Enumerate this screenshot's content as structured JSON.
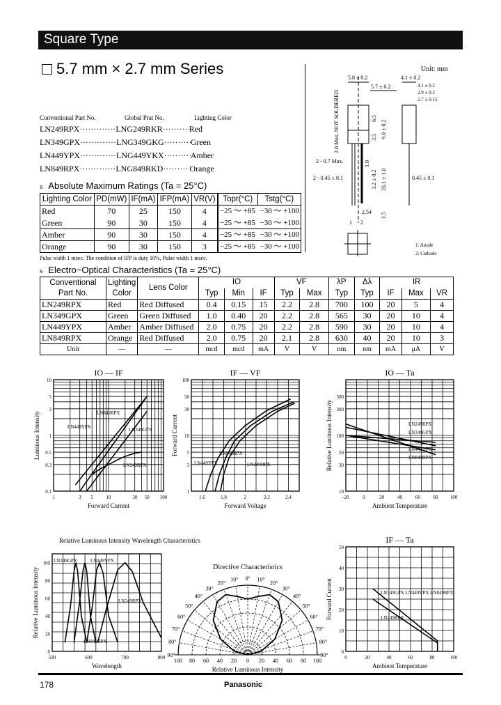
{
  "header": {
    "section": "Square Type",
    "series_title": "5.7 mm × 2.7 mm Series"
  },
  "part_list": {
    "headers": [
      "Conventional Part No.",
      "Global Prat No.",
      "Lighting Color"
    ],
    "rows": [
      [
        "LN249RPX",
        "LNG249RKR",
        "Red"
      ],
      [
        "LN349GPX",
        "LNG349GKG",
        "Green"
      ],
      [
        "LN449YPX",
        "LNG449YKX",
        "Amber"
      ],
      [
        "LN849RPX",
        "LNG849RKD",
        "Orange"
      ]
    ]
  },
  "abs_max": {
    "heading": "Absolute Maximum Ratings (Ta = 25°C)",
    "headers": [
      "Lighting Color",
      "PD(mW)",
      "IF(mA)",
      "IFP(mA)",
      "VR(V)",
      "Topr(°C)",
      "Tstg(°C)"
    ],
    "rows": [
      [
        "Red",
        "70",
        "25",
        "150",
        "4",
        "−25 ～ +85",
        "−30 ～ +100"
      ],
      [
        "Green",
        "90",
        "30",
        "150",
        "4",
        "−25 ～ +85",
        "−30 ～ +100"
      ],
      [
        "Amber",
        "90",
        "30",
        "150",
        "4",
        "−25 ～ +85",
        "−30 ～ +100"
      ],
      [
        "Orange",
        "90",
        "30",
        "150",
        "3",
        "−25 ～ +85",
        "−30 ～ +100"
      ]
    ],
    "footnote": "Pulse width 1 msec. The condition of IFP is duty 10%, Pulse width 1 msec."
  },
  "electro_optical": {
    "heading": "Electro−Optical Characteristics (Ta = 25°C)",
    "group_headers": [
      "Conventional Part No.",
      "Lighting Color",
      "Lens Color",
      "IO",
      "VF",
      "λP",
      "Δλ",
      "IR"
    ],
    "sub_headers": [
      "Typ",
      "Min",
      "IF",
      "Typ",
      "Max",
      "Typ",
      "Typ",
      "IF",
      "Max",
      "VR"
    ],
    "rows": [
      [
        "LN249RPX",
        "Red",
        "Red Diffused",
        "0.4",
        "0.15",
        "15",
        "2.2",
        "2.8",
        "700",
        "100",
        "20",
        "5",
        "4"
      ],
      [
        "LN349GPX",
        "Green",
        "Green Diffused",
        "1.0",
        "0.40",
        "20",
        "2.2",
        "2.8",
        "565",
        "30",
        "20",
        "10",
        "4"
      ],
      [
        "LN449YPX",
        "Amber",
        "Amber Diffused",
        "2.0",
        "0.75",
        "20",
        "2.2",
        "2.8",
        "590",
        "30",
        "20",
        "10",
        "4"
      ],
      [
        "LN849RPX",
        "Orange",
        "Red Diffused",
        "2.0",
        "0.75",
        "20",
        "2.1",
        "2.8",
        "630",
        "40",
        "20",
        "10",
        "3"
      ]
    ],
    "units": [
      "Unit",
      "—",
      "—",
      "mcd",
      "mcd",
      "mA",
      "V",
      "V",
      "nm",
      "nm",
      "mA",
      "μA",
      "V"
    ]
  },
  "dimensions": {
    "unit": "Unit: mm",
    "labels": [
      "5.8 ± 0.2",
      "5.7 ± 0.2",
      "4.1 ± 0.2",
      "4.1 ± 0.2",
      "2.9 ± 0.2",
      "2.7 ± 0.15",
      "2.0 Max. NOT SOLDERED",
      "6.5",
      "3.5",
      "9.0 ± 0.2",
      "1.0",
      "2 - 0.7 Max.",
      "2 - 0.45 ± 0.1",
      "0.45 ± 0.1",
      "3.2 ± 0.2",
      "26.1 ± 1.0",
      "1.5",
      "2.54",
      "1",
      "2"
    ],
    "pins": [
      "1: Anode",
      "2: Cathode"
    ]
  },
  "chart_data": [
    {
      "id": "io-if",
      "type": "line",
      "title": "IO — IF",
      "xlabel": "Forward Current",
      "ylabel": "Luminous Intensity",
      "xscale": "log",
      "yscale": "log",
      "xlim": [
        1,
        100
      ],
      "ylim": [
        0.1,
        10
      ],
      "xticks": [
        1,
        3,
        5,
        10,
        30,
        50,
        100
      ],
      "yticks": [
        0.1,
        0.3,
        0.5,
        1,
        3,
        5,
        10
      ],
      "grid": true,
      "series": [
        {
          "name": "LN449YPX",
          "x": [
            2.5,
            50
          ],
          "y": [
            0.13,
            5
          ]
        },
        {
          "name": "LN849RPX",
          "x": [
            3,
            50
          ],
          "y": [
            0.1,
            5
          ]
        },
        {
          "name": "LN349GPX",
          "x": [
            4,
            50
          ],
          "y": [
            0.1,
            2.7
          ]
        },
        {
          "name": "LN249RPX",
          "x": [
            5,
            7,
            10,
            15,
            20,
            30,
            40
          ],
          "y": [
            0.2,
            0.25,
            0.3,
            0.37,
            0.42,
            0.48,
            0.5
          ]
        }
      ]
    },
    {
      "id": "if-vf",
      "type": "line",
      "title": "IF — VF",
      "xlabel": "Forward Voltage",
      "ylabel": "Forward Current",
      "xscale": "linear",
      "yscale": "log",
      "xlim": [
        1.5,
        2.5
      ],
      "ylim": [
        1,
        100
      ],
      "xticks": [
        1.6,
        1.8,
        2.0,
        2.2,
        2.4
      ],
      "yticks": [
        1,
        3,
        5,
        10,
        30,
        50,
        100
      ],
      "grid": true,
      "series": [
        {
          "name": "LN449YPX",
          "x": [
            1.63,
            1.68,
            1.75,
            1.85,
            2.0,
            2.2,
            2.42
          ],
          "y": [
            1,
            2,
            4,
            8,
            15,
            28,
            45
          ]
        },
        {
          "name": "LN849RPX",
          "x": [
            1.72,
            1.76,
            1.82,
            1.9,
            2.05,
            2.25,
            2.45
          ],
          "y": [
            1,
            2,
            4,
            8,
            15,
            27,
            40
          ]
        },
        {
          "name": "LN249RPX",
          "x": [
            1.77,
            1.8,
            1.85,
            1.95,
            2.1,
            2.3,
            2.46
          ],
          "y": [
            1,
            2,
            4,
            8,
            15,
            27,
            38
          ]
        }
      ]
    },
    {
      "id": "io-ta",
      "type": "line",
      "title": "IO — Ta",
      "xlabel": "Ambient Temperature",
      "ylabel": "Relative Luminous Intensity",
      "xscale": "linear",
      "yscale": "log",
      "xlim": [
        -20,
        100
      ],
      "ylim": [
        10,
        1000
      ],
      "xticks": [
        -20,
        0,
        20,
        40,
        60,
        80,
        100
      ],
      "yticks": [
        10,
        30,
        50,
        100,
        300,
        500
      ],
      "grid": true,
      "series": [
        {
          "name": "LN249RPX",
          "x": [
            -20,
            80
          ],
          "y": [
            100,
            75
          ]
        },
        {
          "name": "LN349GPX",
          "x": [
            -20,
            80
          ],
          "y": [
            140,
            65
          ]
        },
        {
          "name": "LN449YPX",
          "x": [
            -20,
            80
          ],
          "y": [
            160,
            45
          ]
        },
        {
          "name": "LN849RPX",
          "x": [
            -20,
            80
          ],
          "y": [
            100,
            55
          ]
        }
      ]
    },
    {
      "id": "spectrum",
      "type": "line",
      "title": "Relative Luminous Intensity Wavelength Characteristics",
      "xlabel": "Wavelength",
      "ylabel": "Relative Luminous Intensity",
      "xscale": "linear",
      "yscale": "linear",
      "xlim": [
        500,
        800
      ],
      "ylim": [
        0,
        110
      ],
      "xticks": [
        500,
        600,
        700,
        800
      ],
      "yticks": [
        0,
        20,
        40,
        60,
        80,
        100
      ],
      "grid": true,
      "series": [
        {
          "name": "LN349GPX",
          "x": [
            535,
            550,
            560,
            565,
            570,
            580,
            595
          ],
          "y": [
            10,
            50,
            90,
            100,
            90,
            40,
            10
          ]
        },
        {
          "name": "LN449YPX",
          "x": [
            560,
            575,
            585,
            590,
            595,
            605,
            620
          ],
          "y": [
            10,
            55,
            92,
            100,
            90,
            40,
            10
          ]
        },
        {
          "name": "LN849RPX",
          "x": [
            595,
            610,
            622,
            630,
            640,
            655,
            680
          ],
          "y": [
            10,
            50,
            92,
            100,
            88,
            40,
            10
          ]
        },
        {
          "name": "LN249RPX",
          "x": [
            625,
            650,
            680,
            700,
            720,
            750,
            800
          ],
          "y": [
            10,
            50,
            92,
            100,
            90,
            55,
            15
          ]
        }
      ]
    },
    {
      "id": "directive",
      "type": "polar",
      "title": "Directive Characterisrics",
      "xlabel": "Relative Luminous Intensity",
      "angle_ticks": [
        "0°",
        "10°",
        "20°",
        "30°",
        "40°",
        "50°",
        "60°",
        "70°",
        "80°",
        "90°"
      ],
      "radial_ticks": [
        0,
        20,
        40,
        60,
        80,
        100
      ],
      "series": [
        {
          "angle": [
            -90,
            -75,
            -60,
            -45,
            -30,
            -20,
            -10,
            0,
            10,
            20,
            30,
            45,
            60,
            75,
            90
          ],
          "r": [
            0,
            20,
            45,
            70,
            88,
            92,
            85,
            80,
            85,
            92,
            88,
            70,
            45,
            20,
            0
          ]
        }
      ]
    },
    {
      "id": "if-ta",
      "type": "line",
      "title": "IF — Ta",
      "xlabel": "Ambient Temperature",
      "ylabel": "Forward Current",
      "xscale": "linear",
      "yscale": "linear",
      "xlim": [
        0,
        100
      ],
      "ylim": [
        0,
        50
      ],
      "xticks": [
        0,
        20,
        40,
        60,
        80,
        100
      ],
      "yticks": [
        0,
        10,
        20,
        30,
        40,
        50
      ],
      "grid": true,
      "series": [
        {
          "name": "LN349GPX LN449YPX LN849RPX",
          "x": [
            25,
            85,
            85
          ],
          "y": [
            30,
            5,
            0
          ]
        },
        {
          "name": "LN249RPX",
          "x": [
            25,
            85,
            85
          ],
          "y": [
            25,
            4,
            0
          ]
        }
      ]
    }
  ],
  "footer": {
    "page": "178",
    "brand": "Panasonic"
  }
}
